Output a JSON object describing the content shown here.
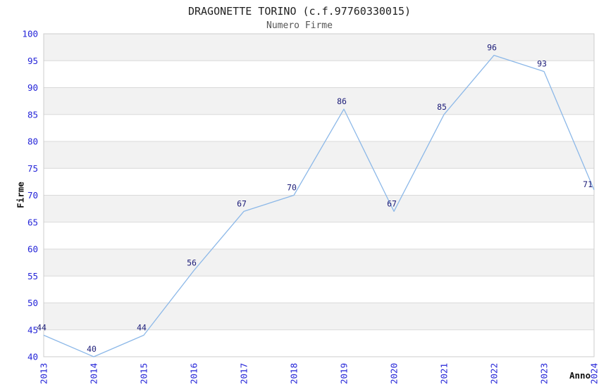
{
  "chart_data": {
    "type": "line",
    "title": "DRAGONETTE TORINO (c.f.97760330015)",
    "subtitle": "Numero Firme",
    "xlabel": "Anno",
    "ylabel": "Firme",
    "categories": [
      "2013",
      "2014",
      "2015",
      "2016",
      "2017",
      "2018",
      "2019",
      "2020",
      "2021",
      "2022",
      "2023",
      "2024"
    ],
    "series": [
      {
        "name": "Numero Firme",
        "values": [
          44,
          40,
          44,
          56,
          67,
          70,
          86,
          67,
          85,
          96,
          93,
          71
        ]
      }
    ],
    "ylim": [
      40,
      100
    ],
    "ytick_step": 5,
    "yticks": [
      40,
      45,
      50,
      55,
      60,
      65,
      70,
      75,
      80,
      85,
      90,
      95,
      100
    ],
    "grid": true,
    "banded_background": true,
    "point_labels_shown": true,
    "legend_position": "none"
  },
  "colors": {
    "line": "#8cb8e8",
    "tick_label": "#2424d8",
    "point_label": "#1c1c78",
    "band_gray": "#f2f2f2",
    "gridline": "#d9d9d9",
    "plot_border": "#cccccc",
    "title_text": "#222222",
    "subtitle_text": "#555555",
    "axis_label_text": "#111111",
    "background": "#ffffff"
  }
}
